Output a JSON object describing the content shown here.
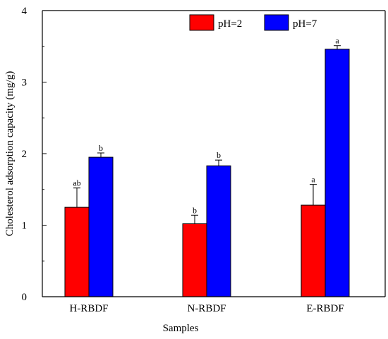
{
  "chart_data": {
    "type": "bar",
    "categories": [
      "H-RBDF",
      "N-RBDF",
      "E-RBDF"
    ],
    "series": [
      {
        "name": "pH=2",
        "color": "#ff0000",
        "values": [
          1.25,
          1.02,
          1.28
        ],
        "errors": [
          0.27,
          0.12,
          0.29
        ],
        "labels": [
          "ab",
          "b",
          "a"
        ]
      },
      {
        "name": "pH=7",
        "color": "#0000ff",
        "values": [
          1.95,
          1.83,
          3.46
        ],
        "errors": [
          0.06,
          0.08,
          0.05
        ],
        "labels": [
          "b",
          "b",
          "a"
        ]
      }
    ],
    "xlabel": "Samples",
    "ylabel": "Cholesterol adsorption capacity (mg/g)",
    "ylim": [
      0,
      4
    ],
    "yticks": [
      "0",
      "1",
      "2",
      "3",
      "4"
    ],
    "grid": false,
    "legend_position": "top-right"
  }
}
